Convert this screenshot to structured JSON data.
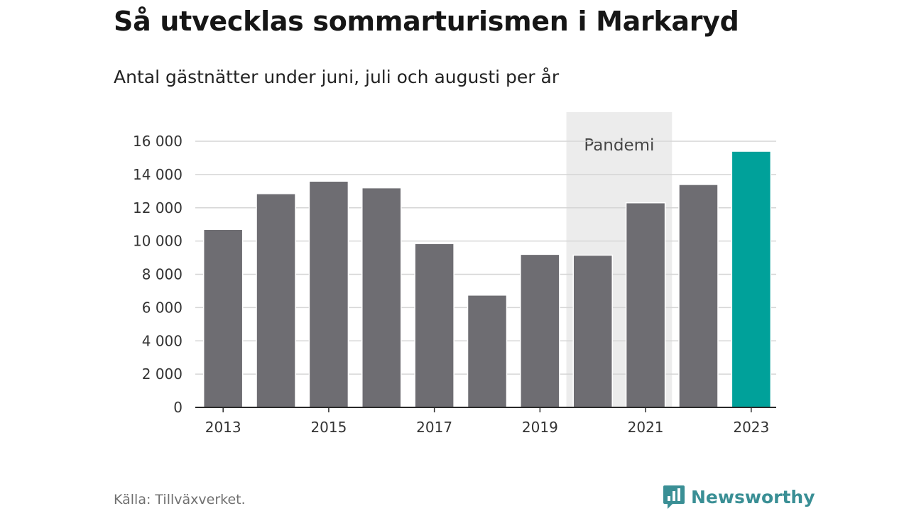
{
  "title": "Så utvecklas sommarturismen i Markaryd",
  "subtitle": "Antal gästnätter under juni, juli och augusti per år",
  "source": "Källa: Tillväxverket.",
  "brand": {
    "name": "Newsworthy",
    "color": "#3a8f95"
  },
  "chart_data": {
    "type": "bar",
    "categories": [
      "2013",
      "2014",
      "2015",
      "2016",
      "2017",
      "2018",
      "2019",
      "2020",
      "2021",
      "2022",
      "2023"
    ],
    "values": [
      10700,
      12850,
      13600,
      13200,
      9850,
      6750,
      9200,
      9150,
      12300,
      13400,
      15400
    ],
    "x_tick_labels": [
      "2013",
      "2015",
      "2017",
      "2019",
      "2021",
      "2023"
    ],
    "y_ticks": [
      0,
      2000,
      4000,
      6000,
      8000,
      10000,
      12000,
      14000,
      16000
    ],
    "y_tick_labels": [
      "0",
      "2 000",
      "4 000",
      "6 000",
      "8 000",
      "10 000",
      "12 000",
      "14 000",
      "16 000"
    ],
    "ylim": [
      0,
      16000
    ],
    "xlabel": "",
    "ylabel": "",
    "grid": true,
    "bar_color": "#6e6d72",
    "highlight": {
      "category": "2023",
      "color": "#00a19a"
    },
    "annotation_band": {
      "label": "Pandemi",
      "from": "2020",
      "to": "2021",
      "color": "#ececec"
    }
  }
}
